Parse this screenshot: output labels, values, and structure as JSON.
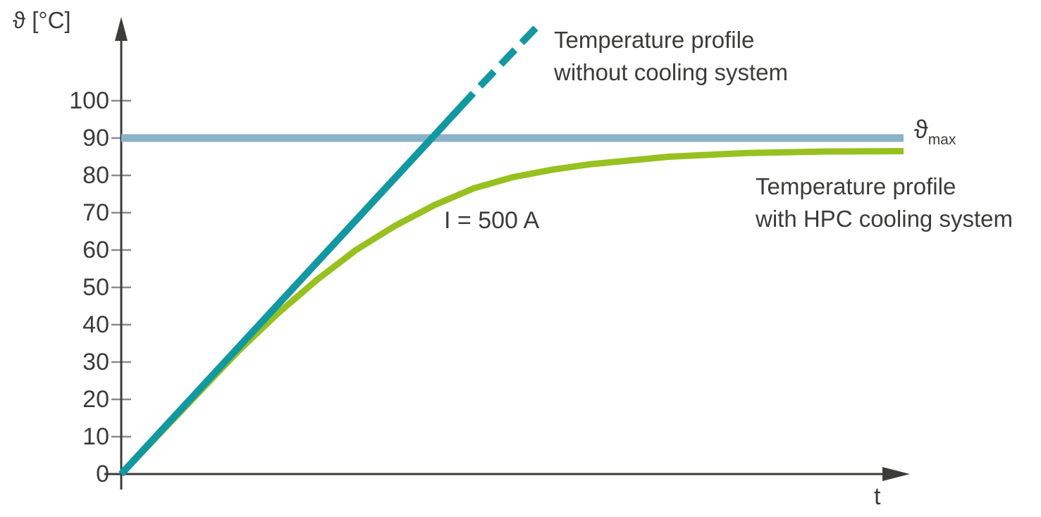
{
  "chart_data": {
    "type": "line",
    "title": "",
    "xlabel": "t",
    "ylabel": "ϑ [°C]",
    "xlim": [
      0,
      100
    ],
    "ylim": [
      0,
      120
    ],
    "yticks": [
      0,
      10,
      20,
      30,
      40,
      50,
      60,
      70,
      80,
      90,
      100
    ],
    "xticks": [],
    "grid": false,
    "legend_position": "inline annotations next to lines",
    "series": [
      {
        "name": "Temperature profile without cooling system",
        "color": "#1398A1",
        "line_width": 10,
        "segments": [
          {
            "style": "solid",
            "x": [
              0,
              45
            ],
            "y": [
              0,
              102
            ]
          },
          {
            "style": "dashed",
            "x": [
              45,
              53
            ],
            "y": [
              102,
              119.5
            ]
          }
        ]
      },
      {
        "name": "Temperature profile with HPC cooling system",
        "color": "#97C11F",
        "line_width": 9,
        "segments": [
          {
            "style": "solid",
            "x": [
              0,
              5,
              10,
              15,
              20,
              25,
              30,
              35,
              40,
              45,
              50,
              55,
              60,
              70,
              80,
              90,
              100
            ],
            "y": [
              0,
              11,
              22,
              33,
              43,
              52,
              60,
              66.5,
              72,
              76.5,
              79.5,
              81.5,
              83,
              85,
              86,
              86.4,
              86.5
            ]
          }
        ]
      },
      {
        "name": "ϑmax temperature limit",
        "color": "#8BB3C7",
        "line_width": 11,
        "segments": [
          {
            "style": "solid",
            "x": [
              0,
              100
            ],
            "y": [
              90,
              90
            ]
          }
        ]
      }
    ],
    "annotations": [
      {
        "text": "I = 500 A",
        "attached_to": "curve region"
      },
      {
        "text": "ϑmax",
        "attached_to": "limit line right end"
      }
    ]
  },
  "labels": {
    "y_axis_title": "ϑ [°C]",
    "x_axis_title": "t",
    "current_annotation": "I = 500 A",
    "legend_without": {
      "line1": "Temperature profile",
      "line2": "without cooling system"
    },
    "legend_with": {
      "line1": "Temperature profile",
      "line2": "with HPC cooling system"
    },
    "theta_max": {
      "symbol": "ϑ",
      "subscript": "max"
    }
  },
  "colors": {
    "without_cooling": "#1398A1",
    "with_cooling": "#97C11F",
    "max_line": "#8BB3C7",
    "axis": "#3C3C3B",
    "tick": "#8C8C8C",
    "text": "#3C3C3B",
    "background": "#FFFFFF"
  }
}
